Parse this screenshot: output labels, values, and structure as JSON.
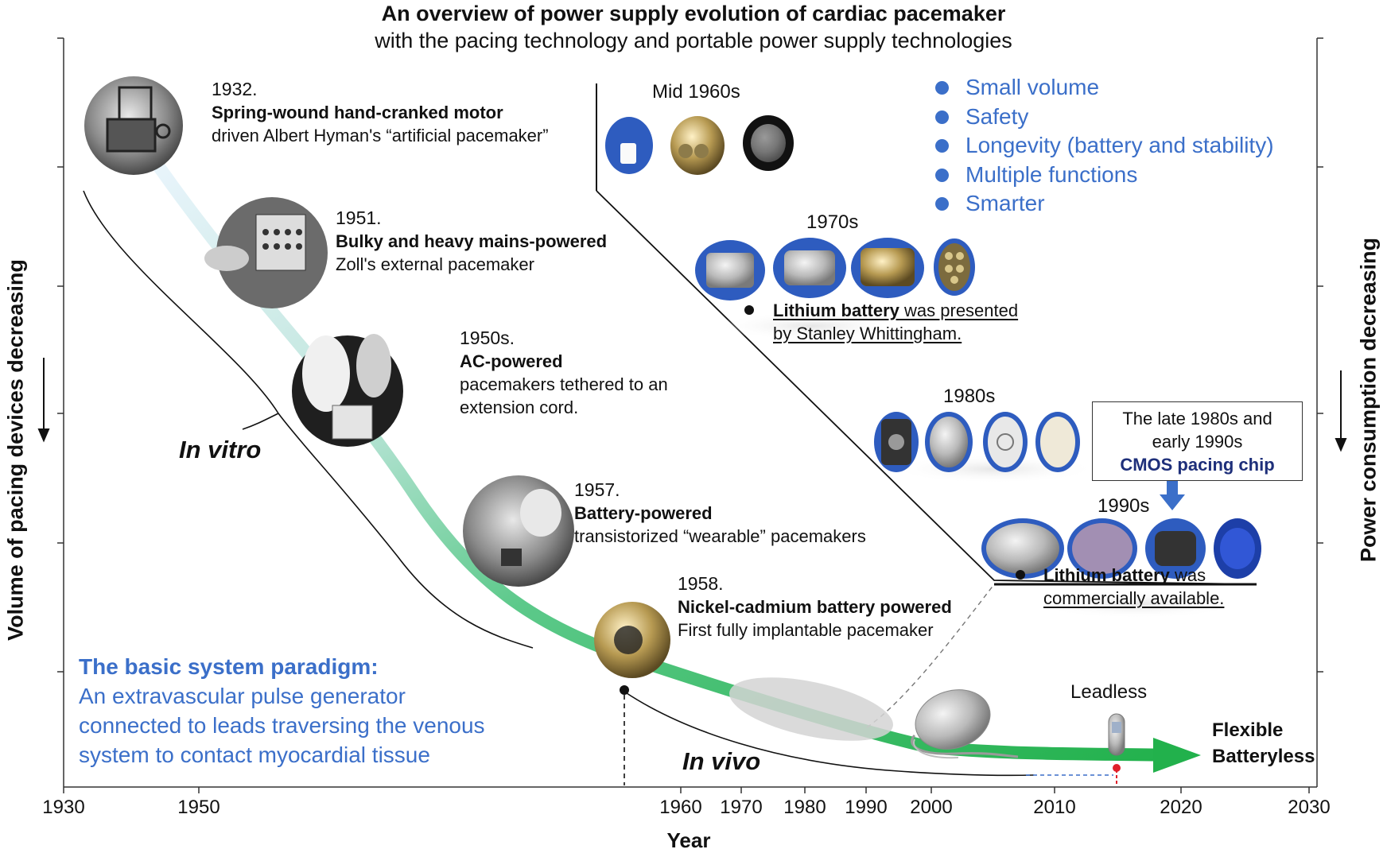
{
  "title": {
    "line1": "An overview of power supply evolution of cardiac pacemaker",
    "line2": "with the pacing technology and portable power supply technologies"
  },
  "axes": {
    "x_label": "Year",
    "x_ticks": [
      "1930",
      "1950",
      "1960",
      "1970",
      "1980",
      "1990",
      "2000",
      "2010",
      "2020",
      "2030"
    ],
    "y_left_label": "Volume of pacing devices decreasing",
    "y_right_label": "Power consumption decreasing"
  },
  "events": [
    {
      "year": "1932.",
      "headline": "Spring-wound hand-cranked motor",
      "detail": "driven Albert Hyman's “artificial pacemaker”"
    },
    {
      "year": "1951.",
      "headline": "Bulky and heavy mains-powered",
      "detail": "Zoll's external pacemaker"
    },
    {
      "year": "1950s.",
      "headline": "AC-powered",
      "detail": "pacemakers tethered to an",
      "detail2": "extension cord."
    },
    {
      "year": "1957.",
      "headline": "Battery-powered",
      "detail": "transistorized “wearable” pacemakers"
    },
    {
      "year": "1958.",
      "headline": "Nickel-cadmium battery powered",
      "detail": "First fully implantable pacemaker"
    }
  ],
  "eras": {
    "mid1960s": "Mid 1960s",
    "1970s": "1970s",
    "1980s": "1980s",
    "1990s": "1990s",
    "leadless": "Leadless"
  },
  "trends": [
    "Small volume",
    "Safety",
    "Longevity (battery and stability)",
    "Multiple functions",
    "Smarter"
  ],
  "notes": {
    "lithium1_bold": "Lithium battery",
    "lithium1_rest": " was presented",
    "lithium1_line2": "by Stanley Whittingham.",
    "lithium2_bold": "Lithium battery",
    "lithium2_rest": " was",
    "lithium2_line2": "commercially available."
  },
  "cmos_box": {
    "line1": "The late 1980s and",
    "line2": "early 1990s",
    "line3": "CMOS pacing chip"
  },
  "labels": {
    "in_vitro": "In vitro",
    "in_vivo": "In vivo",
    "flexible": "Flexible",
    "batteryless": "Batteryless"
  },
  "paradigm": {
    "heading": "The basic system paradigm:",
    "line1": "An extravascular pulse generator",
    "line2": "connected to leads traversing the venous",
    "line3": "system to contact myocardial tissue"
  },
  "colors": {
    "accent_blue": "#3b6fc9",
    "curve_green": "#22b14c",
    "cmos_navy": "#1e2f7a",
    "marker_red": "#e0202a"
  }
}
